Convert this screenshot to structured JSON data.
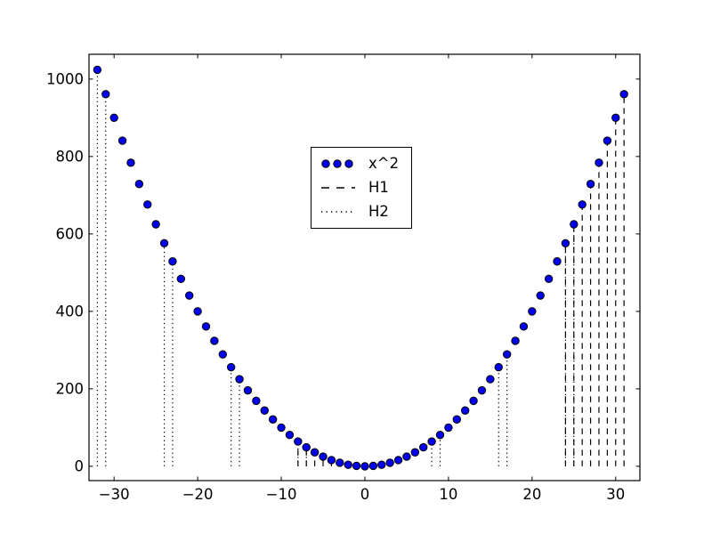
{
  "figure": {
    "background": "#ffffff",
    "axes_color": "#000000"
  },
  "chart_data": {
    "type": "scatter",
    "title": "",
    "xlabel": "",
    "ylabel": "",
    "grid": false,
    "xlim": [
      -33,
      32.9
    ],
    "ylim": [
      -37,
      1064
    ],
    "xticks": {
      "values": [
        -30,
        -20,
        -10,
        0,
        10,
        20,
        30
      ],
      "labels": [
        "−30",
        "−20",
        "−10",
        "0",
        "10",
        "20",
        "30"
      ]
    },
    "yticks": {
      "values": [
        0,
        200,
        400,
        600,
        800,
        1000
      ],
      "labels": [
        "0",
        "200",
        "400",
        "600",
        "800",
        "1000"
      ]
    },
    "series": [
      {
        "name": "x^2",
        "plot_type": "scatter",
        "marker": "circle",
        "marker_color": "#0000ee",
        "marker_edge_color": "#000000",
        "x": [
          -32,
          -31,
          -30,
          -29,
          -28,
          -27,
          -26,
          -25,
          -24,
          -23,
          -22,
          -21,
          -20,
          -19,
          -18,
          -17,
          -16,
          -15,
          -14,
          -13,
          -12,
          -11,
          -10,
          -9,
          -8,
          -7,
          -6,
          -5,
          -4,
          -3,
          -2,
          -1,
          0,
          1,
          2,
          3,
          4,
          5,
          6,
          7,
          8,
          9,
          10,
          11,
          12,
          13,
          14,
          15,
          16,
          17,
          18,
          19,
          20,
          21,
          22,
          23,
          24,
          25,
          26,
          27,
          28,
          29,
          30,
          31
        ],
        "y": [
          1024,
          961,
          900,
          841,
          784,
          729,
          676,
          625,
          576,
          529,
          484,
          441,
          400,
          361,
          324,
          289,
          256,
          225,
          196,
          169,
          144,
          121,
          100,
          81,
          64,
          49,
          36,
          25,
          16,
          9,
          4,
          1,
          0,
          1,
          4,
          9,
          16,
          25,
          36,
          49,
          64,
          81,
          100,
          121,
          144,
          169,
          196,
          225,
          256,
          289,
          324,
          361,
          400,
          441,
          484,
          529,
          576,
          625,
          676,
          729,
          784,
          841,
          900,
          961
        ]
      },
      {
        "name": "H1",
        "plot_type": "vlines",
        "linestyle": "dashed",
        "color": "#000000",
        "x": [
          -8,
          -7,
          -6,
          -5,
          -4,
          -3,
          -2,
          -1,
          24,
          25,
          26,
          27,
          28,
          29,
          30,
          31
        ],
        "ymin": 0,
        "ymax": [
          64,
          49,
          36,
          25,
          16,
          9,
          4,
          1,
          576,
          625,
          676,
          729,
          784,
          841,
          900,
          961
        ]
      },
      {
        "name": "H2",
        "plot_type": "vlines",
        "linestyle": "dotted",
        "color": "#000000",
        "x": [
          -32,
          -31,
          -24,
          -23,
          -16,
          -15,
          -8,
          -7,
          0,
          1,
          8,
          9,
          16,
          17,
          24,
          25
        ],
        "ymin": 0,
        "ymax": [
          1024,
          961,
          576,
          529,
          256,
          225,
          64,
          49,
          0,
          1,
          64,
          81,
          256,
          289,
          576,
          625
        ]
      }
    ],
    "legend": {
      "position": "upper-center",
      "entries": [
        {
          "label": "x^2",
          "sample": "three-dots"
        },
        {
          "label": "H1",
          "sample": "dashed-line"
        },
        {
          "label": "H2",
          "sample": "dotted-line"
        }
      ]
    }
  }
}
